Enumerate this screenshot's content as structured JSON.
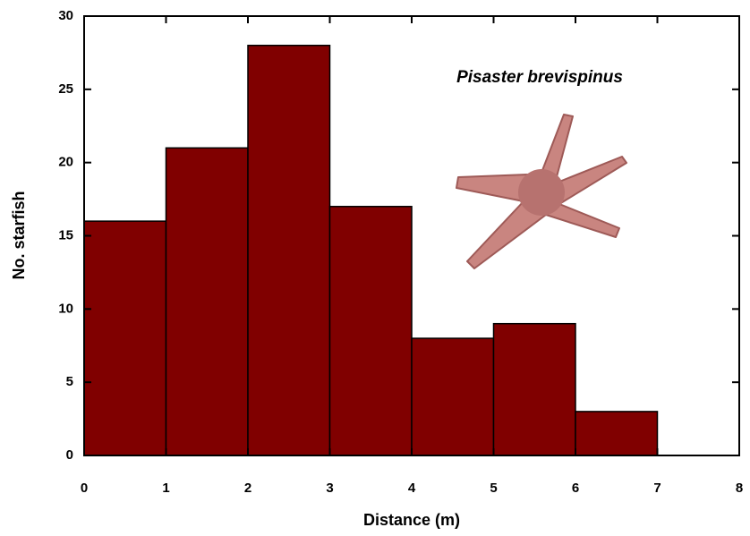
{
  "chart_data": {
    "type": "histogram",
    "annotation": "Pisaster brevispinus",
    "x_label": "Distance (m)",
    "y_label": "No. starfish",
    "bins": [
      0,
      1,
      2,
      3,
      4,
      5,
      6,
      7
    ],
    "values": [
      16,
      21,
      28,
      17,
      8,
      9,
      3
    ],
    "color": "#800000",
    "xlim": [
      0,
      8
    ],
    "xticks": [
      0,
      1,
      2,
      3,
      4,
      5,
      6,
      7,
      8
    ],
    "ylim": [
      0,
      30
    ],
    "yticks": [
      0,
      5,
      10,
      15,
      20,
      25,
      30
    ]
  }
}
